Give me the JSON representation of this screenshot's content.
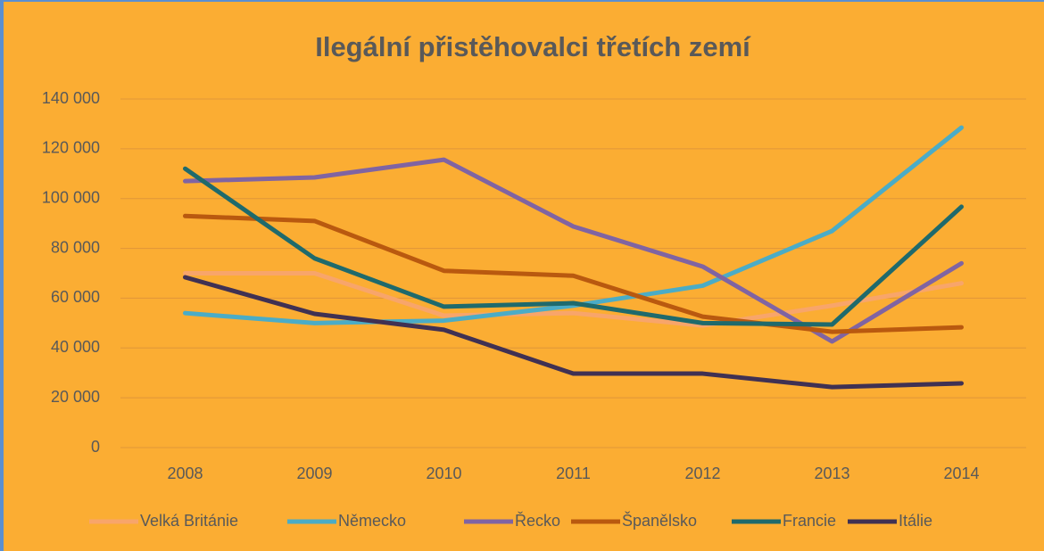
{
  "chart_data": {
    "type": "line",
    "title": "Ilegální přistěhovalci třetích zemí",
    "categories": [
      "2008",
      "2009",
      "2010",
      "2011",
      "2012",
      "2013",
      "2014"
    ],
    "series": [
      {
        "name": "Velká Británie",
        "color": "#f8a56a",
        "values": [
          70000,
          70000,
          53000,
          54000,
          49000,
          57000,
          66000
        ]
      },
      {
        "name": "Německo",
        "color": "#4bacc6",
        "values": [
          54000,
          50000,
          51000,
          57000,
          65000,
          87000,
          128500
        ]
      },
      {
        "name": "Řecko",
        "color": "#8064a2",
        "values": [
          107000,
          108500,
          115600,
          88800,
          72700,
          42600,
          74000
        ]
      },
      {
        "name": "Španělsko",
        "color": "#b9590f",
        "values": [
          93000,
          91000,
          71000,
          69000,
          52600,
          46500,
          48300
        ]
      },
      {
        "name": "Francie",
        "color": "#1f6a6c",
        "values": [
          112000,
          76000,
          56600,
          58000,
          50000,
          49400,
          96700
        ]
      },
      {
        "name": "Itálie",
        "color": "#403153",
        "values": [
          68400,
          53700,
          47300,
          29700,
          29700,
          24300,
          25800
        ]
      }
    ],
    "ylim": [
      0,
      140000
    ],
    "yticks": [
      0,
      {
        "value": 20000,
        "label": "20 000"
      },
      {
        "value": 40000,
        "label": "40 000"
      },
      {
        "value": 60000,
        "label": "60 000"
      },
      {
        "value": 80000,
        "label": "80 000"
      },
      {
        "value": 100000,
        "label": "100 000"
      },
      {
        "value": 120000,
        "label": "120 000"
      },
      {
        "value": 140000,
        "label": "140 000"
      }
    ],
    "grid": true,
    "legend": "bottom"
  }
}
